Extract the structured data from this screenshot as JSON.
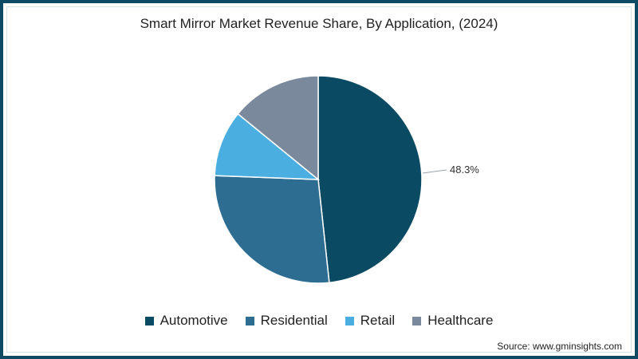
{
  "chart_data": {
    "type": "pie",
    "title": "Smart Mirror Market Revenue Share, By Application, (2024)",
    "categories": [
      "Automotive",
      "Residential",
      "Retail",
      "Healthcare"
    ],
    "values": [
      48.3,
      27.3,
      10.3,
      14.1
    ],
    "colors": [
      "#0b4a63",
      "#2e6d92",
      "#4aaee0",
      "#7a8a9c"
    ],
    "data_labels": [
      {
        "category": "Automotive",
        "text": "48.3%"
      }
    ],
    "legend_position": "bottom",
    "start_angle": "12 o'clock, clockwise"
  },
  "title": "Smart Mirror Market Revenue Share, By Application, (2024)",
  "label": "48.3%",
  "legend": [
    {
      "label": "Automotive",
      "color": "#0b4a63"
    },
    {
      "label": "Residential",
      "color": "#2e6d92"
    },
    {
      "label": "Retail",
      "color": "#4aaee0"
    },
    {
      "label": "Healthcare",
      "color": "#7a8a9c"
    }
  ],
  "source": "Source: www.gminsights.com",
  "frame_color": "#0e4a63"
}
